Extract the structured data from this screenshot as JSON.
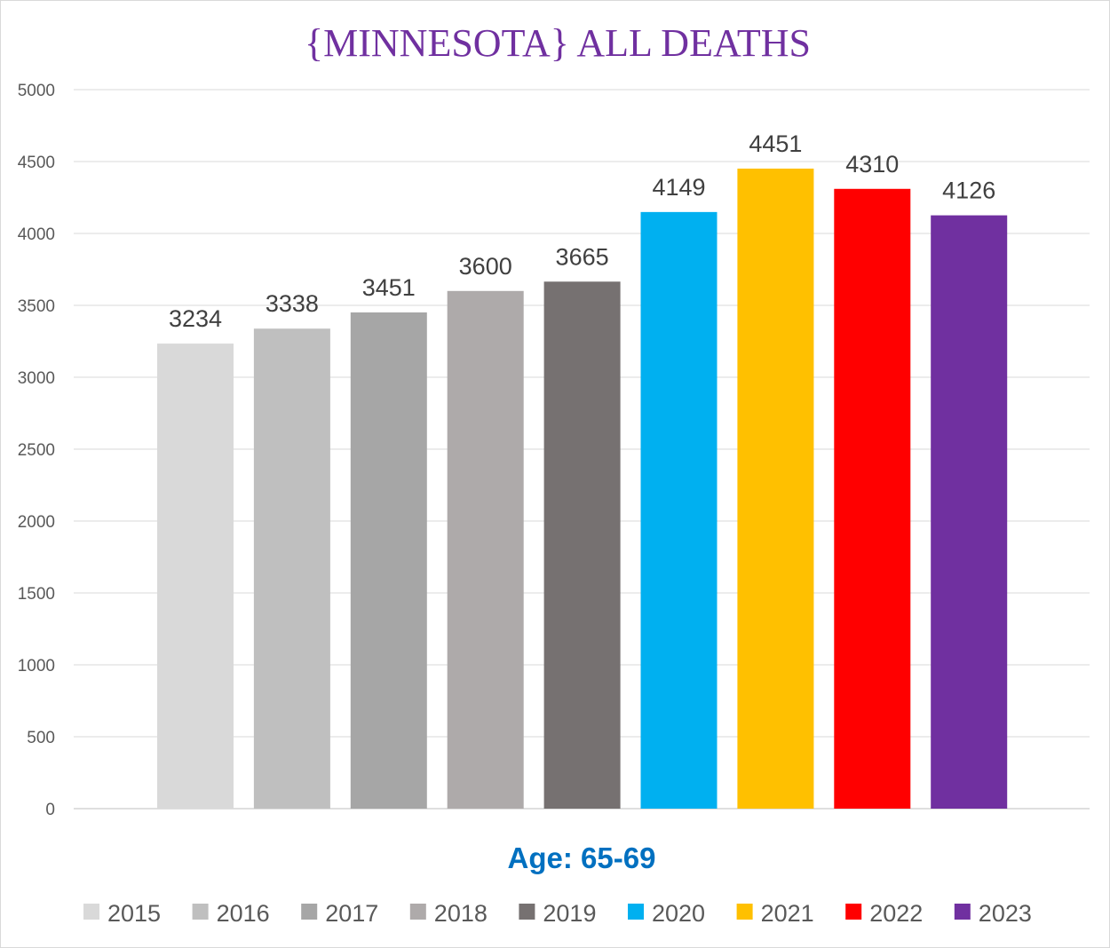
{
  "chart_data": {
    "type": "bar",
    "title": "{MINNESOTA}  ALL DEATHS",
    "xlabel": "Age: 65-69",
    "ylabel": "",
    "ylim": [
      0,
      5000
    ],
    "yticks": [
      0,
      500,
      1000,
      1500,
      2000,
      2500,
      3000,
      3500,
      4000,
      4500,
      5000
    ],
    "categories": [
      "2015",
      "2016",
      "2017",
      "2018",
      "2019",
      "2020",
      "2021",
      "2022",
      "2023"
    ],
    "values": [
      3234,
      3338,
      3451,
      3600,
      3665,
      4149,
      4451,
      4310,
      4126
    ],
    "colors": [
      "#d9d9d9",
      "#bfbfbf",
      "#a6a6a6",
      "#aeaaaa",
      "#767171",
      "#00b0f0",
      "#ffc000",
      "#ff0000",
      "#7030a0"
    ],
    "title_color": "#7030a0",
    "xlabel_color": "#0070c0",
    "gridlines": true,
    "legend_position": "bottom"
  }
}
